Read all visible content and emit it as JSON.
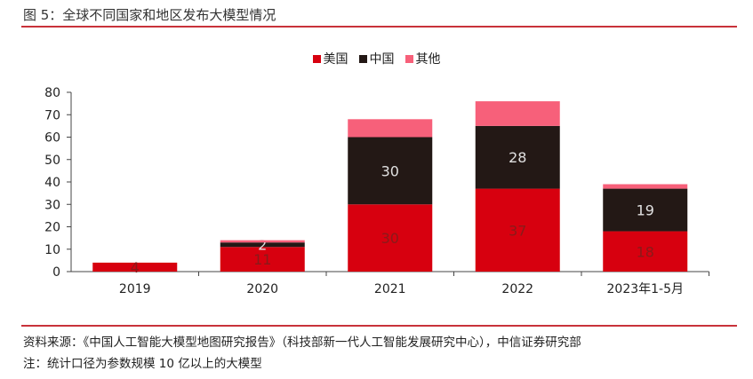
{
  "title": "图 5：全球不同国家和地区发布大模型情况",
  "source": "资料来源：《中国人工智能大模型地图研究报告》（科技部新一代人工智能发展研究中心），中信证券研究部",
  "note": "注：统计口径为参数规模 10 亿以上的大模型",
  "chart_data": {
    "type": "bar",
    "stacked": true,
    "title": "",
    "xlabel": "",
    "ylabel": "",
    "categories": [
      "2019",
      "2020",
      "2021",
      "2022",
      "2023年1-5月"
    ],
    "ylim": [
      0,
      80
    ],
    "yticks": [
      0,
      10,
      20,
      30,
      40,
      50,
      60,
      70,
      80
    ],
    "grid": false,
    "legend_position": "top",
    "series": [
      {
        "name": "美国",
        "color": "#d7000f",
        "label_color": "#8a1a1a",
        "values": [
          4,
          11,
          30,
          37,
          18
        ]
      },
      {
        "name": "中国",
        "color": "#231815",
        "label_color": "#e0e0e0",
        "values": [
          0,
          2,
          30,
          28,
          19
        ]
      },
      {
        "name": "其他",
        "color": "#f7607a",
        "label_color": "#ffffff",
        "values": [
          0,
          1,
          8,
          11,
          2
        ]
      }
    ],
    "data_labels": [
      [
        "4",
        "11",
        "30",
        "37",
        "18"
      ],
      [
        "",
        "2",
        "30",
        "28",
        "19"
      ],
      [
        "",
        "",
        "",
        "",
        ""
      ]
    ]
  }
}
